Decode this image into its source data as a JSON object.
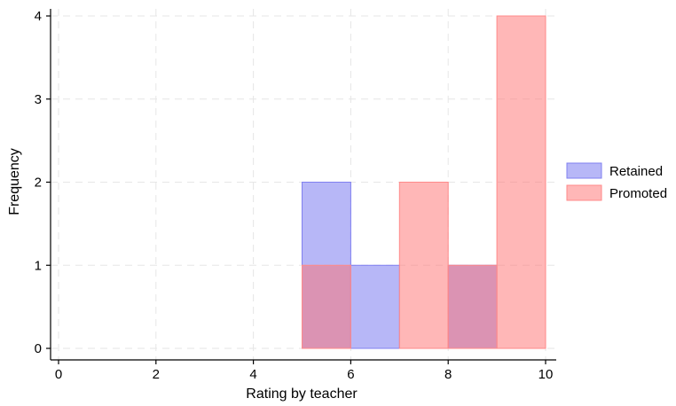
{
  "chart_data": {
    "type": "bar",
    "subtype": "overlapping-histogram",
    "xlabel": "Rating by teacher",
    "ylabel": "Frequency",
    "xlim": [
      0,
      10
    ],
    "ylim": [
      0,
      4
    ],
    "x_ticks": [
      0,
      2,
      4,
      6,
      8,
      10
    ],
    "y_ticks": [
      0,
      1,
      2,
      3,
      4
    ],
    "grid": true,
    "legend_position": "right",
    "bin_width": 1,
    "series": [
      {
        "name": "Retained",
        "color": "#b3b3f5",
        "bins": [
          {
            "start": 5,
            "end": 6,
            "value": 2
          },
          {
            "start": 6,
            "end": 7,
            "value": 1
          },
          {
            "start": 8,
            "end": 9,
            "value": 1
          }
        ]
      },
      {
        "name": "Promoted",
        "color": "#ffb5b5",
        "bins": [
          {
            "start": 5,
            "end": 6,
            "value": 1
          },
          {
            "start": 7,
            "end": 8,
            "value": 2
          },
          {
            "start": 8,
            "end": 9,
            "value": 1
          },
          {
            "start": 9,
            "end": 10,
            "value": 4
          }
        ]
      }
    ]
  }
}
